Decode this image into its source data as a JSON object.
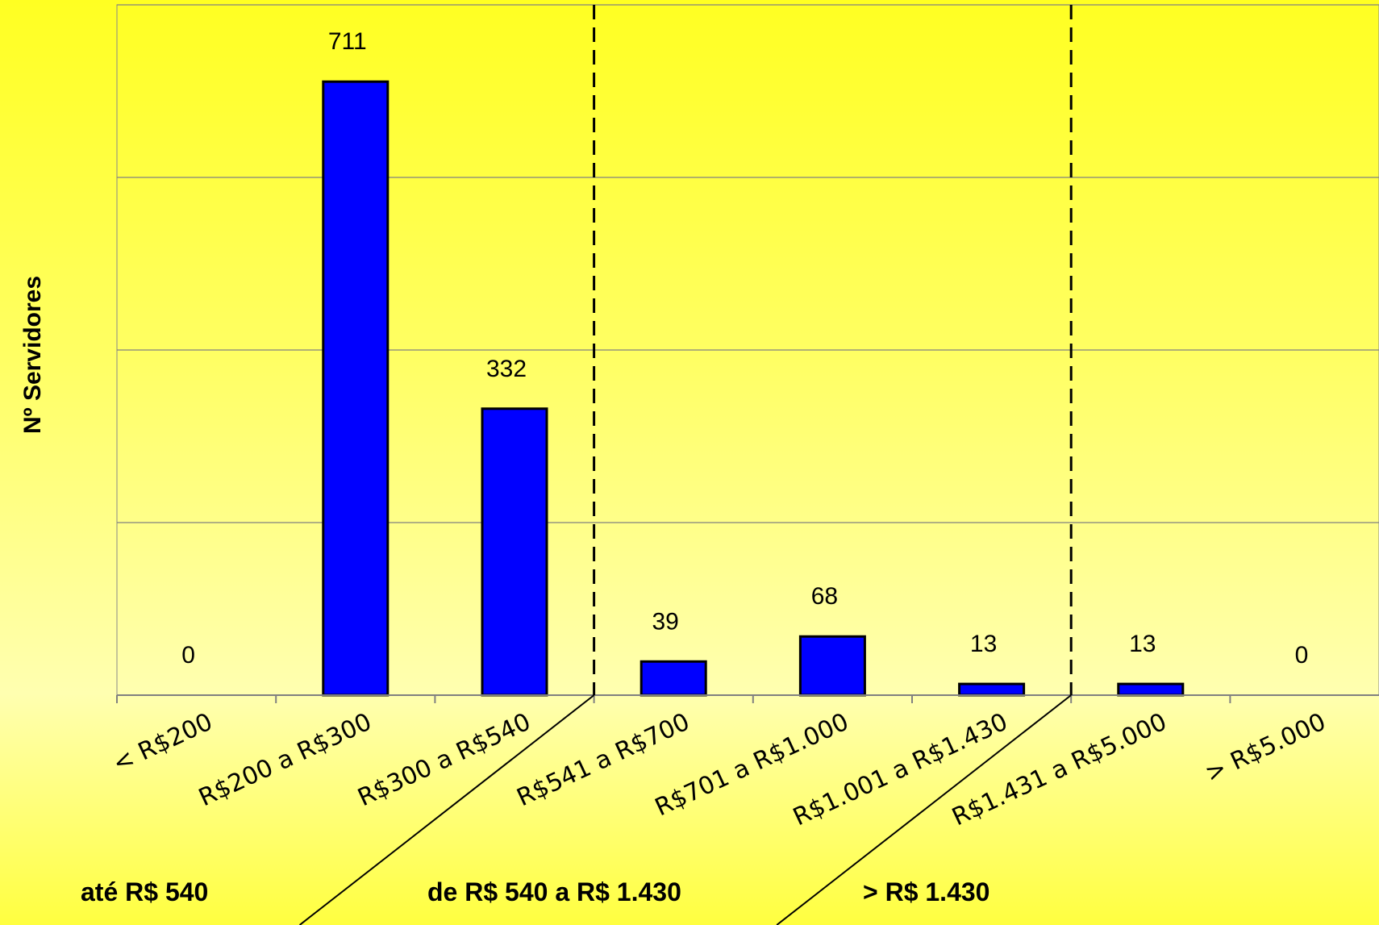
{
  "chart_data": {
    "type": "bar",
    "title": "",
    "xlabel": "",
    "ylabel": "Nº Servidores",
    "ylim": [
      0,
      800
    ],
    "grid": true,
    "categories": [
      "< R$200",
      "R$200 a R$300",
      "R$300 a R$540",
      "R$541 a R$700",
      "R$701 a R$1.000",
      "R$1.001 a R$1.430",
      "R$1.431 a R$5.000",
      "> R$5.000"
    ],
    "values": [
      0,
      711,
      332,
      39,
      68,
      13,
      13,
      0
    ],
    "bar_color": "#0000ff",
    "groups": [
      {
        "label": "até R$ 540",
        "categories": 3
      },
      {
        "label": "de R$ 540 a R$ 1.430",
        "categories": 3
      },
      {
        "label": "> R$ 1.430",
        "categories": 2
      }
    ]
  }
}
